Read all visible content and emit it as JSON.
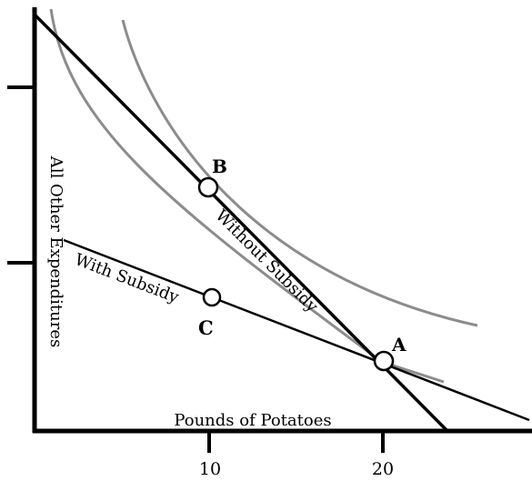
{
  "chart_data": {
    "type": "diagram",
    "xlabel": "Pounds of Potatoes",
    "ylabel": "All Other Expenditures",
    "x_ticks": [
      "10",
      "20"
    ],
    "lines": [
      {
        "label": "Without Subsidy"
      },
      {
        "label": "With Subsidy"
      }
    ],
    "points": [
      {
        "label": "A"
      },
      {
        "label": "B"
      },
      {
        "label": "C"
      }
    ]
  },
  "colors": {
    "axis": "#000000",
    "budget_line": "#000000",
    "indifference_curve": "#8c8c8c"
  }
}
